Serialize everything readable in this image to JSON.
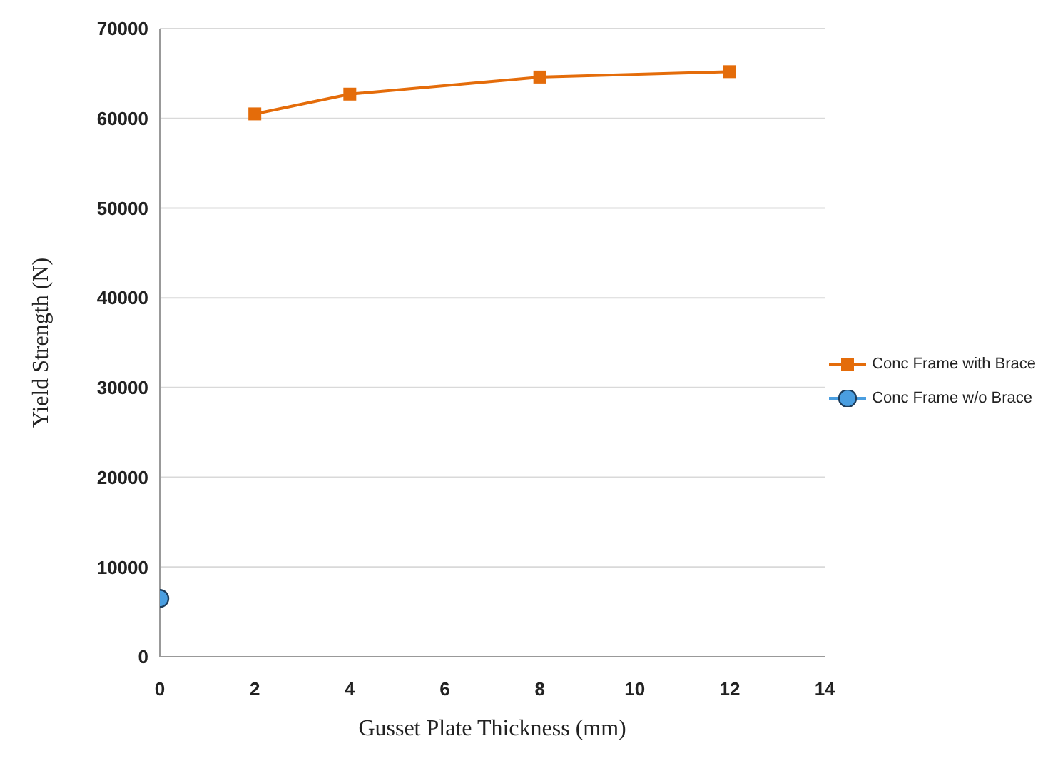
{
  "chart_data": {
    "type": "line",
    "xlabel": "Gusset Plate Thickness  (mm)",
    "ylabel": "Yield Strength (N)",
    "xlim": [
      0,
      14
    ],
    "xticks": [
      0,
      2,
      4,
      6,
      8,
      10,
      12,
      14
    ],
    "ylim": [
      0,
      70000
    ],
    "yticks": [
      0,
      10000,
      20000,
      30000,
      40000,
      50000,
      60000,
      70000
    ],
    "grid": "y",
    "legend": "right",
    "series": [
      {
        "name": "Conc Frame with Brace",
        "color": "#e46c0a",
        "marker": "square",
        "x": [
          2,
          4,
          8,
          12
        ],
        "values": [
          60500,
          62700,
          64600,
          65200
        ]
      },
      {
        "name": "Conc Frame w/o Brace",
        "color": "#4a9ee0",
        "marker": "circle",
        "x": [
          0
        ],
        "values": [
          6500
        ]
      }
    ]
  }
}
